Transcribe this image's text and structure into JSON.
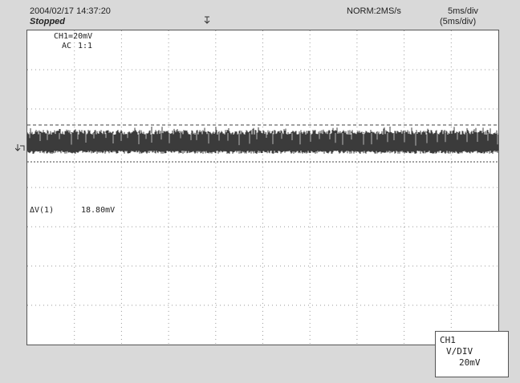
{
  "header": {
    "datetime": "2004/02/17  14:37:20",
    "status": "Stopped",
    "acquisition": "NORM:2MS/s",
    "timebase": "5ms/div",
    "timebase_sub": "(5ms/div)"
  },
  "channel": {
    "scale": "CH1=20mV",
    "coupling": "AC",
    "probe": "1:1"
  },
  "measurement": {
    "label": "ΔV(1)",
    "value": "18.80mV"
  },
  "vdiv_box": {
    "channel": "CH1",
    "label": "V/DIV",
    "value": "20mV"
  },
  "icons": {
    "trigger_position": "trigger-position-icon",
    "trigger_level": "trigger-level-icon"
  },
  "colors": {
    "signal": "#3b3b3b",
    "grid": "#9a9a9a",
    "background": "#d9d9d9"
  }
}
